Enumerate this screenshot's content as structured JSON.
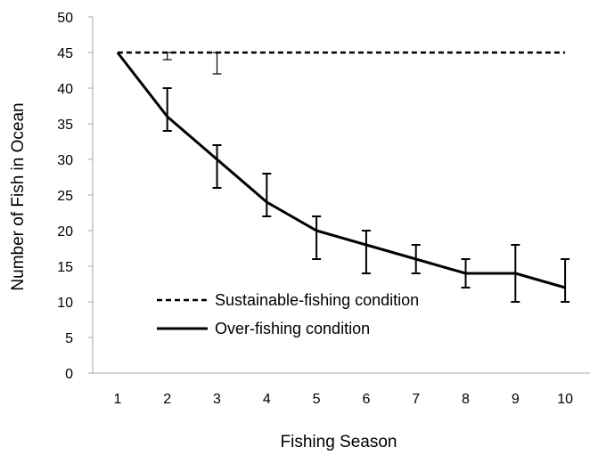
{
  "chart_data": {
    "type": "line",
    "xlabel": "Fishing Season",
    "ylabel": "Number of Fish in Ocean",
    "x": [
      1,
      2,
      3,
      4,
      5,
      6,
      7,
      8,
      9,
      10
    ],
    "xlim": [
      0.5,
      10.5
    ],
    "ylim": [
      0,
      50
    ],
    "yticks": [
      0,
      5,
      10,
      15,
      20,
      25,
      30,
      35,
      40,
      45,
      50
    ],
    "grid": false,
    "legend_position": "bottom-left",
    "series": [
      {
        "name": "Sustainable-fishing condition",
        "style": "dashed",
        "color": "#000000",
        "values": [
          45,
          45,
          45,
          45,
          45,
          45,
          45,
          45,
          45,
          45
        ],
        "error_low": [
          null,
          44,
          42,
          null,
          null,
          null,
          null,
          null,
          null,
          null
        ],
        "error_high": [
          null,
          45,
          45,
          null,
          null,
          null,
          null,
          null,
          null,
          null
        ]
      },
      {
        "name": "Over-fishing condition",
        "style": "solid",
        "color": "#000000",
        "values": [
          45,
          36,
          30,
          24,
          20,
          18,
          16,
          14,
          14,
          12
        ],
        "error_low": [
          null,
          34,
          26,
          22,
          16,
          14,
          14,
          12,
          10,
          10
        ],
        "error_high": [
          null,
          40,
          32,
          28,
          22,
          20,
          18,
          16,
          18,
          16
        ]
      }
    ]
  }
}
